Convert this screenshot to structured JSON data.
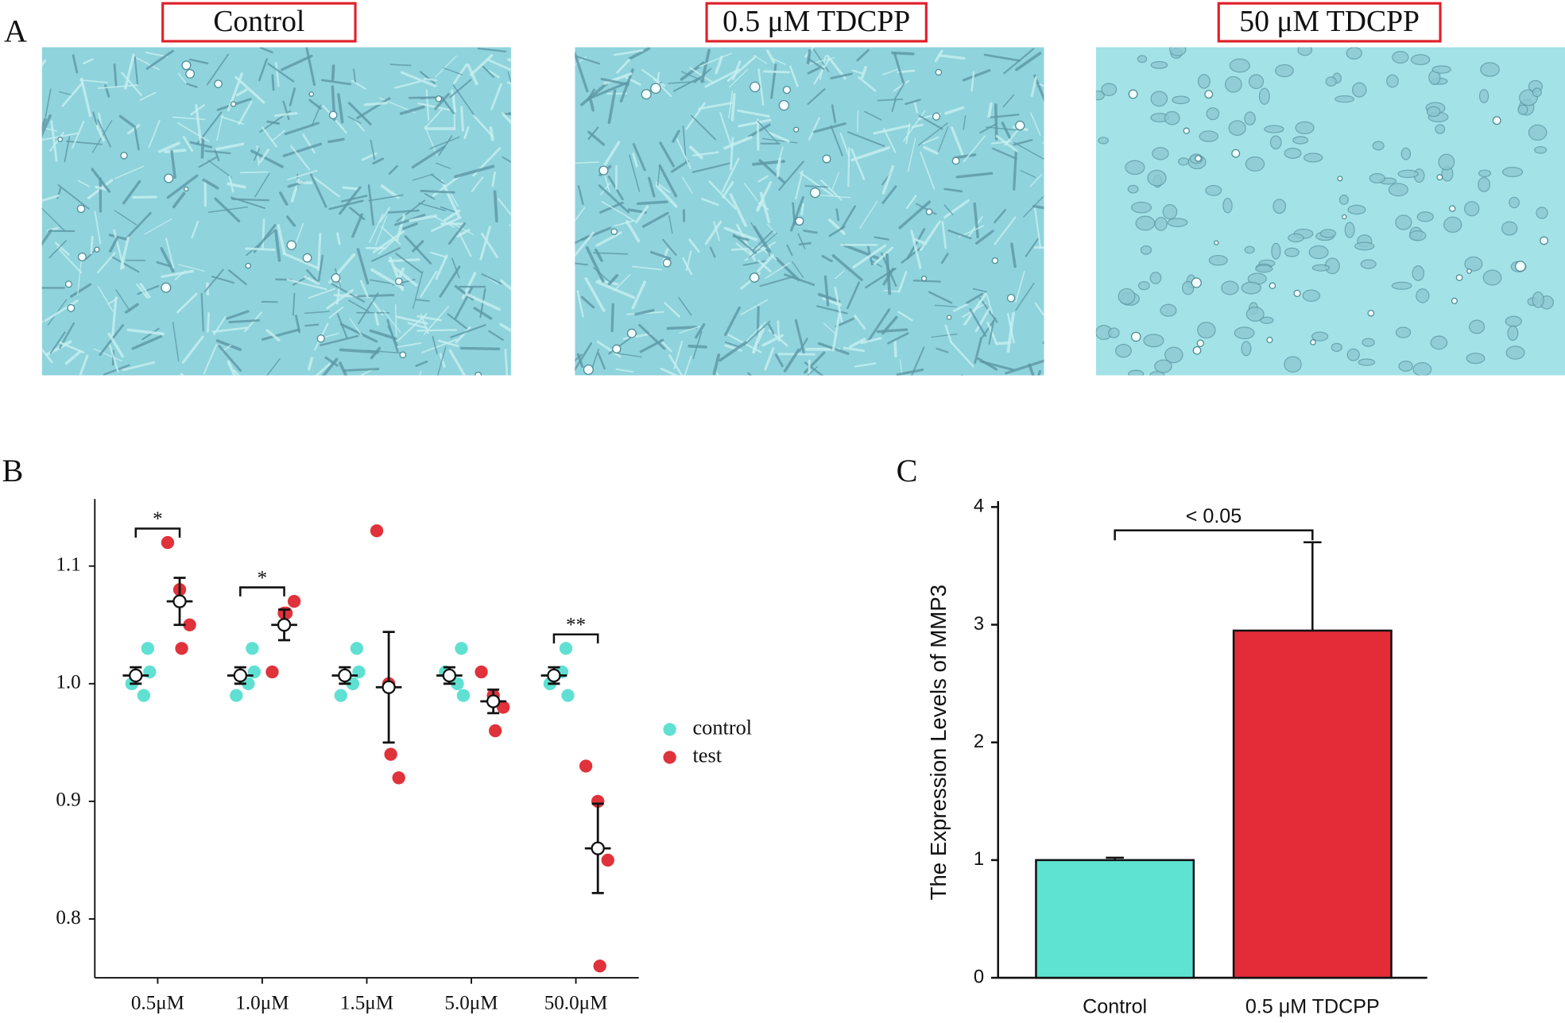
{
  "panel_labels": [
    "A",
    "B",
    "C"
  ],
  "images": [
    {
      "label": "Control"
    },
    {
      "label": "0.5 μM TDCPP"
    },
    {
      "label": "50 μM TDCPP"
    }
  ],
  "chart_data": [
    {
      "type": "scatter",
      "categories": [
        "0.5μM",
        "1.0μM",
        "1.5μM",
        "5.0μM",
        "50.0μM"
      ],
      "series": [
        {
          "name": "control",
          "color": "#5fe0d2",
          "values": [
            [
              1.03,
              1.0,
              1.01,
              0.99
            ],
            [
              1.03,
              0.99,
              1.01,
              1.0
            ],
            [
              1.03,
              0.99,
              1.01,
              1.0
            ],
            [
              1.03,
              1.01,
              0.99,
              1.0
            ],
            [
              1.03,
              1.0,
              0.99,
              1.01
            ]
          ],
          "means": [
            1.007,
            1.007,
            1.007,
            1.007,
            1.007
          ],
          "errors": [
            0.007,
            0.007,
            0.007,
            0.007,
            0.007
          ]
        },
        {
          "name": "test",
          "color": "#e0323a",
          "values": [
            [
              1.12,
              1.08,
              1.05,
              1.03
            ],
            [
              1.01,
              1.06,
              1.07,
              1.06
            ],
            [
              1.13,
              1.0,
              0.92,
              0.94
            ],
            [
              1.01,
              0.99,
              0.98,
              0.96
            ],
            [
              0.93,
              0.9,
              0.85,
              0.76
            ]
          ],
          "means": [
            1.07,
            1.05,
            0.997,
            0.985,
            0.86
          ],
          "errors": [
            0.02,
            0.013,
            0.047,
            0.01,
            0.038
          ]
        }
      ],
      "significance": [
        "*",
        "*",
        null,
        null,
        "**"
      ],
      "ylim": [
        0.75,
        1.157
      ],
      "yticks": [
        0.8,
        0.9,
        {
          "value": 1,
          "label": "1.0"
        },
        1.1
      ]
    },
    {
      "type": "bar",
      "categories": [
        "Control",
        "0.5 μM TDCPP"
      ],
      "values": [
        1.0,
        2.95
      ],
      "errors": [
        0.02,
        0.75
      ],
      "colors": [
        "#5ee3d2",
        "#e32c38"
      ],
      "ylabel": "The Expression Levels of MMP3",
      "significance": "< 0.05",
      "ylim": [
        0,
        4
      ],
      "yticks": [
        0,
        1,
        2,
        3,
        4
      ]
    }
  ]
}
